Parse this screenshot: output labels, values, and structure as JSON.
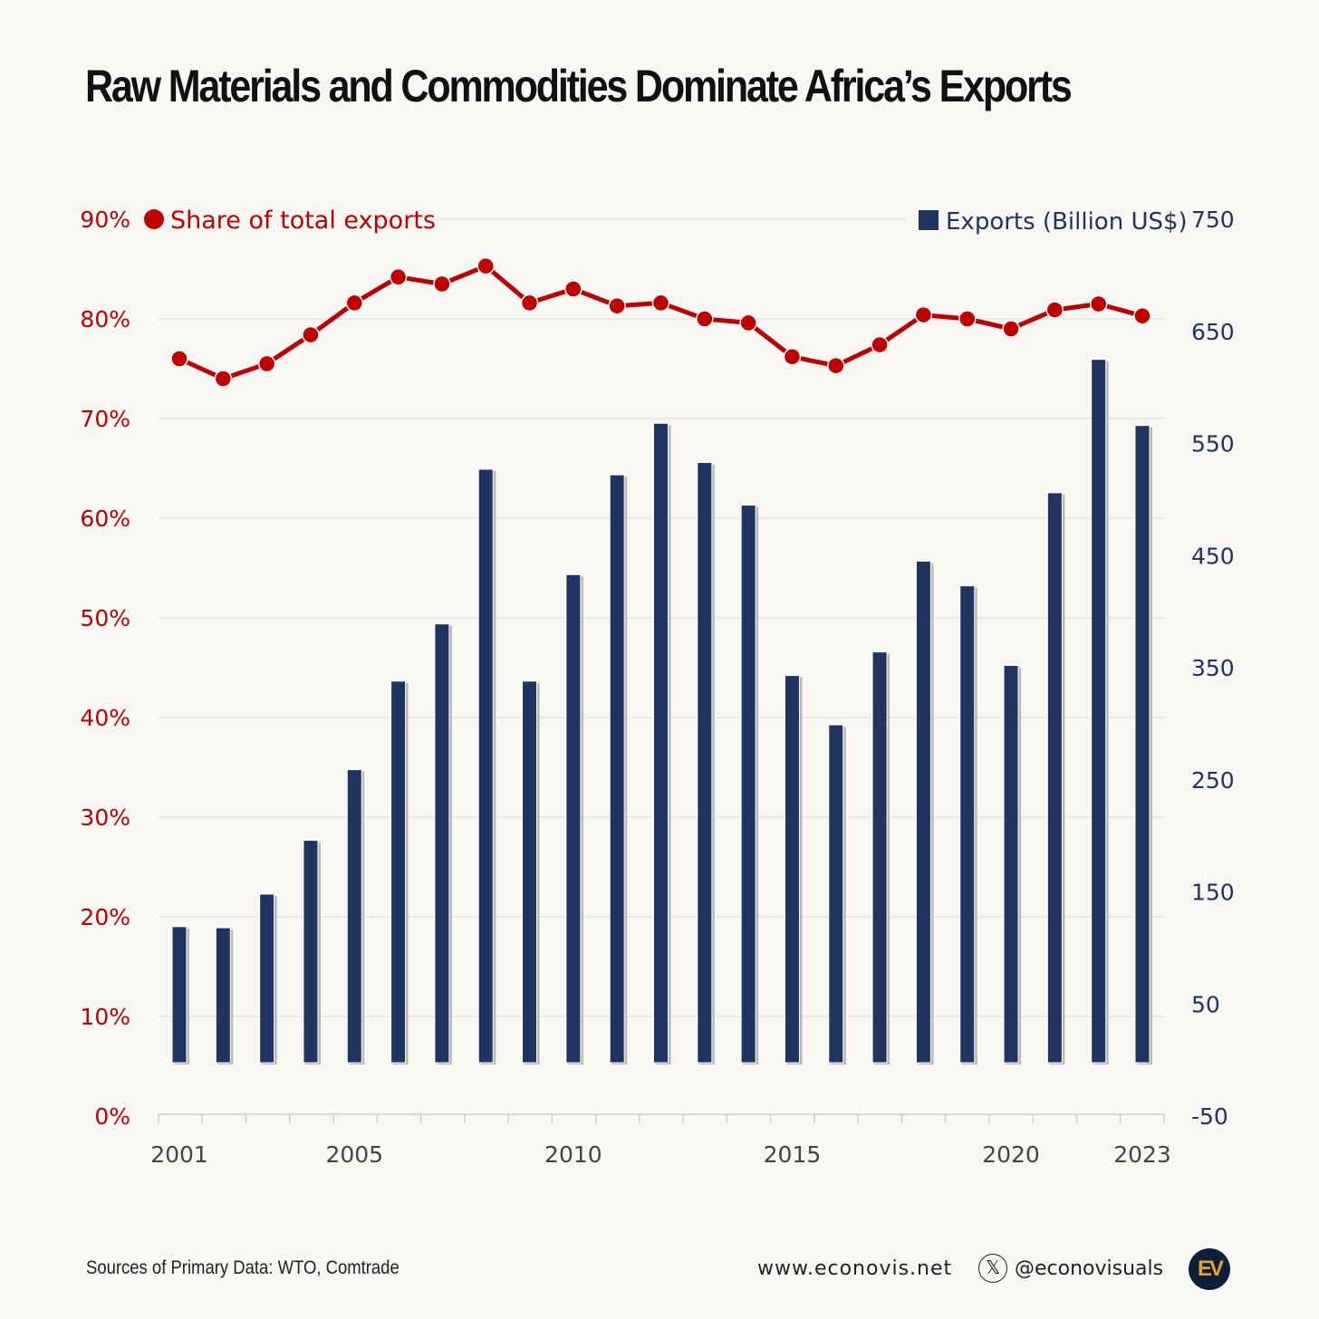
{
  "title": "Raw Materials and Commodities Dominate Africa’s Exports",
  "chart_data": {
    "type": "bar+line",
    "title": "Raw Materials and Commodities Dominate Africa’s Exports",
    "x": [
      2001,
      2002,
      2003,
      2004,
      2005,
      2006,
      2007,
      2008,
      2009,
      2010,
      2011,
      2012,
      2013,
      2014,
      2015,
      2016,
      2017,
      2018,
      2019,
      2020,
      2021,
      2022,
      2023
    ],
    "x_tick_labels": [
      "2001",
      "2005",
      "2010",
      "2015",
      "2020",
      "2023"
    ],
    "series": [
      {
        "name": "Share of total exports",
        "type": "line",
        "axis": "left",
        "color": "#c00000",
        "values": [
          76.0,
          74.0,
          75.5,
          78.4,
          81.6,
          84.2,
          83.5,
          85.3,
          81.6,
          83.0,
          81.3,
          81.6,
          80.0,
          79.6,
          76.2,
          75.3,
          77.4,
          80.4,
          80.0,
          79.0,
          80.9,
          81.5,
          80.3
        ]
      },
      {
        "name": "Exports (Billion US$)",
        "type": "bar",
        "axis": "right",
        "color": "#1f3461",
        "values": [
          119,
          118,
          148,
          196,
          259,
          338,
          389,
          527,
          338,
          433,
          522,
          568,
          533,
          495,
          343,
          299,
          364,
          445,
          423,
          352,
          506,
          625,
          566
        ]
      }
    ],
    "left_axis": {
      "ylim": [
        0,
        90
      ],
      "ticks": [
        "0%",
        "10%",
        "20%",
        "30%",
        "40%",
        "50%",
        "60%",
        "70%",
        "80%",
        "90%"
      ],
      "color": "#c00000"
    },
    "right_axis": {
      "ylim": [
        -50,
        750
      ],
      "ticks": [
        "-50",
        "50",
        "150",
        "250",
        "350",
        "450",
        "550",
        "650",
        "750"
      ],
      "color": "#1f3461"
    },
    "grid": true,
    "legend": {
      "left": "Share of total exports",
      "right": "Exports (Billion US$)",
      "placement": "top"
    }
  },
  "footer": {
    "source": "Sources of Primary Data: WTO, Comtrade",
    "website": "www.econovis.net",
    "handle": "@econovisuals",
    "logo_text": "EV"
  }
}
